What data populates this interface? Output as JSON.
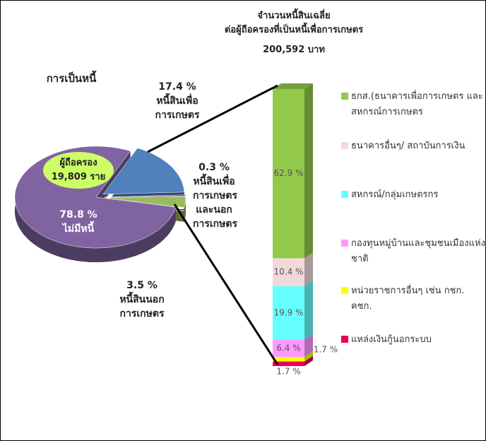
{
  "chart_data": [
    {
      "type": "pie",
      "title": "การเป็นหนี้",
      "annotations": [
        "ผู้ถือครอง",
        "19,809 ราย"
      ],
      "categories": [
        "หนี้สินเพื่อการเกษตร",
        "หนี้สินเพื่อการเกษตรและนอกการเกษตร",
        "หนี้สินนอกการเกษตร",
        "ไม่มีหนี้"
      ],
      "values": [
        17.4,
        0.3,
        3.5,
        78.8
      ],
      "value_labels": [
        "17.4 %",
        "0.3 %",
        "3.5 %",
        "78.8 %"
      ],
      "colors": [
        "#4f81bd",
        "#a0282d",
        "#9bbb59",
        "#8064a2"
      ]
    },
    {
      "type": "bar",
      "stacked": true,
      "title": [
        "จำนวนหนี้สินเฉลี่ย",
        "ต่อผู้ถือครองที่เป็นหนี้เพื่อการเกษตร"
      ],
      "subtitle": "200,592 บาท",
      "series": [
        {
          "name": "ธกส.(ธนาคารเพื่อการเกษตร และสหกรณ์การเกษตร",
          "color": "#92c94a",
          "values": [
            62.9
          ],
          "value_labels": [
            "62.9 %"
          ]
        },
        {
          "name": "ธนาคารอื่นๆ/ สถาบันการเงิน",
          "color": "#f2d9d9",
          "values": [
            10.4
          ],
          "value_labels": [
            "10.4 %"
          ]
        },
        {
          "name": "สหกรณ์/กลุ่มเกษตรกร",
          "color": "#66ffff",
          "values": [
            19.9
          ],
          "value_labels": [
            "19.9 %"
          ]
        },
        {
          "name": "กองทุนหมู่บ้านและชุมชนเมืองแห่งชาติ",
          "color": "#ff99ff",
          "values": [
            6.4
          ],
          "value_labels": [
            "6.4 %"
          ]
        },
        {
          "name": "หน่วยราชการอื่นๆ เช่น กชก. คชก.",
          "color": "#ffff00",
          "values": [
            1.7
          ],
          "value_labels": [
            "1.7 %"
          ]
        },
        {
          "name": "แหล่งเงินกู้นอกระบบ",
          "color": "#e8005a",
          "values": [
            1.7
          ],
          "value_labels": [
            "1.7 %"
          ]
        }
      ]
    }
  ]
}
